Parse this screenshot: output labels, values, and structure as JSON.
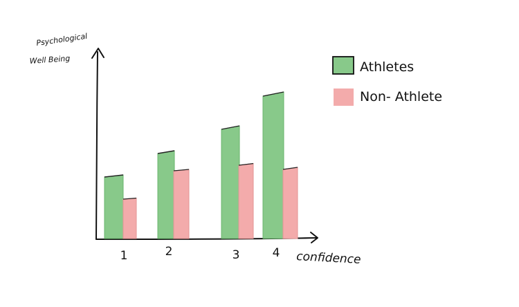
{
  "chart_data": {
    "type": "bar",
    "categories": [
      "1",
      "2",
      "3",
      "4"
    ],
    "series": [
      {
        "name": "Athletes",
        "values": [
          89,
          123,
          158,
          206
        ]
      },
      {
        "name": "Non- Athlete",
        "values": [
          57,
          98,
          106,
          100
        ]
      }
    ],
    "ylabel_lines": [
      "Psychological",
      "Well Being"
    ],
    "xlabel": "confidence",
    "ylim": [
      0,
      230
    ],
    "grid": false,
    "legend_position": "right"
  },
  "colors": {
    "athletes": "#88c98a",
    "athletes_edge": "#6ab56d",
    "non_athletes": "#f3abab",
    "non_athletes_edge": "#e39595",
    "ink": "#111111"
  }
}
